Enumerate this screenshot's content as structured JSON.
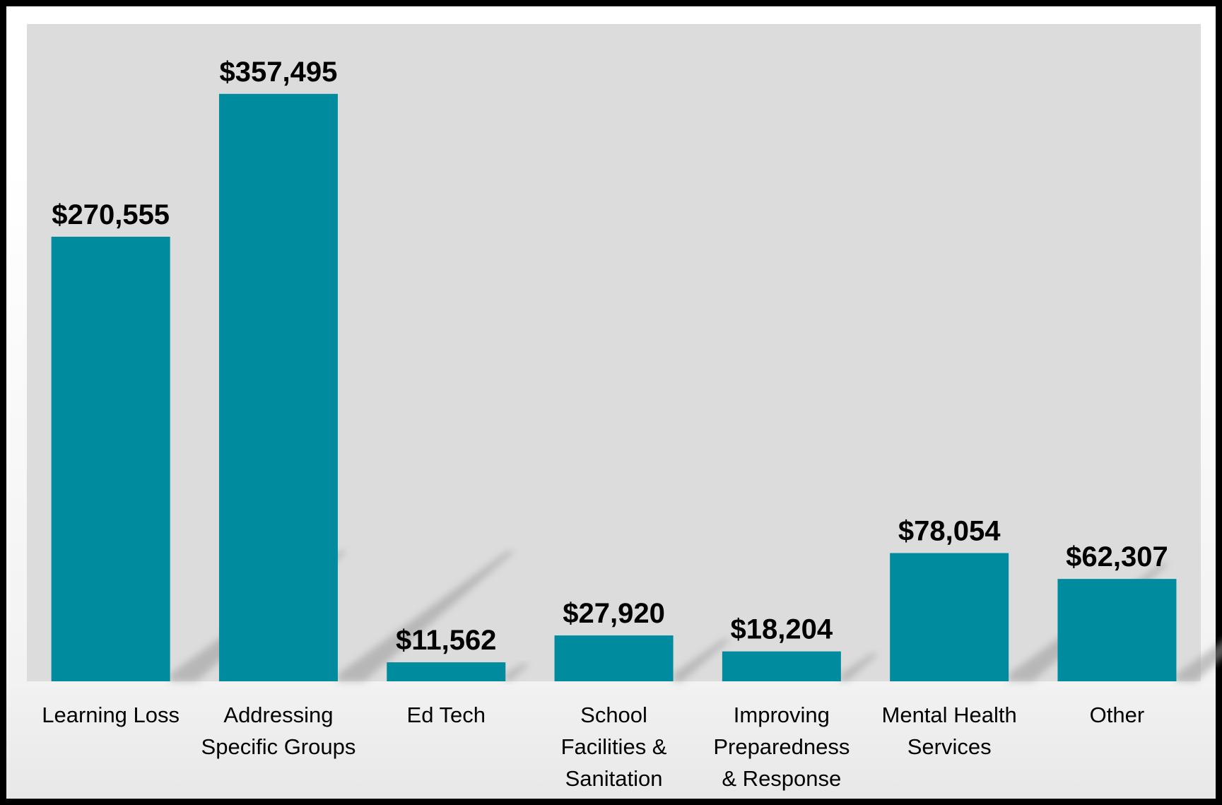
{
  "chart_data": {
    "type": "bar",
    "categories": [
      [
        "Learning Loss"
      ],
      [
        "Addressing",
        "Specific Groups"
      ],
      [
        "Ed Tech"
      ],
      [
        "School",
        "Facilities &",
        "Sanitation"
      ],
      [
        "Improving",
        "Preparedness",
        "& Response"
      ],
      [
        "Mental Health",
        "Services"
      ],
      [
        "Other"
      ]
    ],
    "values": [
      270555,
      357495,
      11562,
      27920,
      18204,
      78054,
      62307
    ],
    "data_labels": [
      "$270,555",
      "$357,495",
      "$11,562",
      "$27,920",
      "$18,204",
      "$78,054",
      "$62,307"
    ],
    "ylim": [
      0,
      400000
    ],
    "bar_color": "#008b9f",
    "plot_background": "#dcdcdc",
    "grid": false,
    "legend": "none"
  }
}
